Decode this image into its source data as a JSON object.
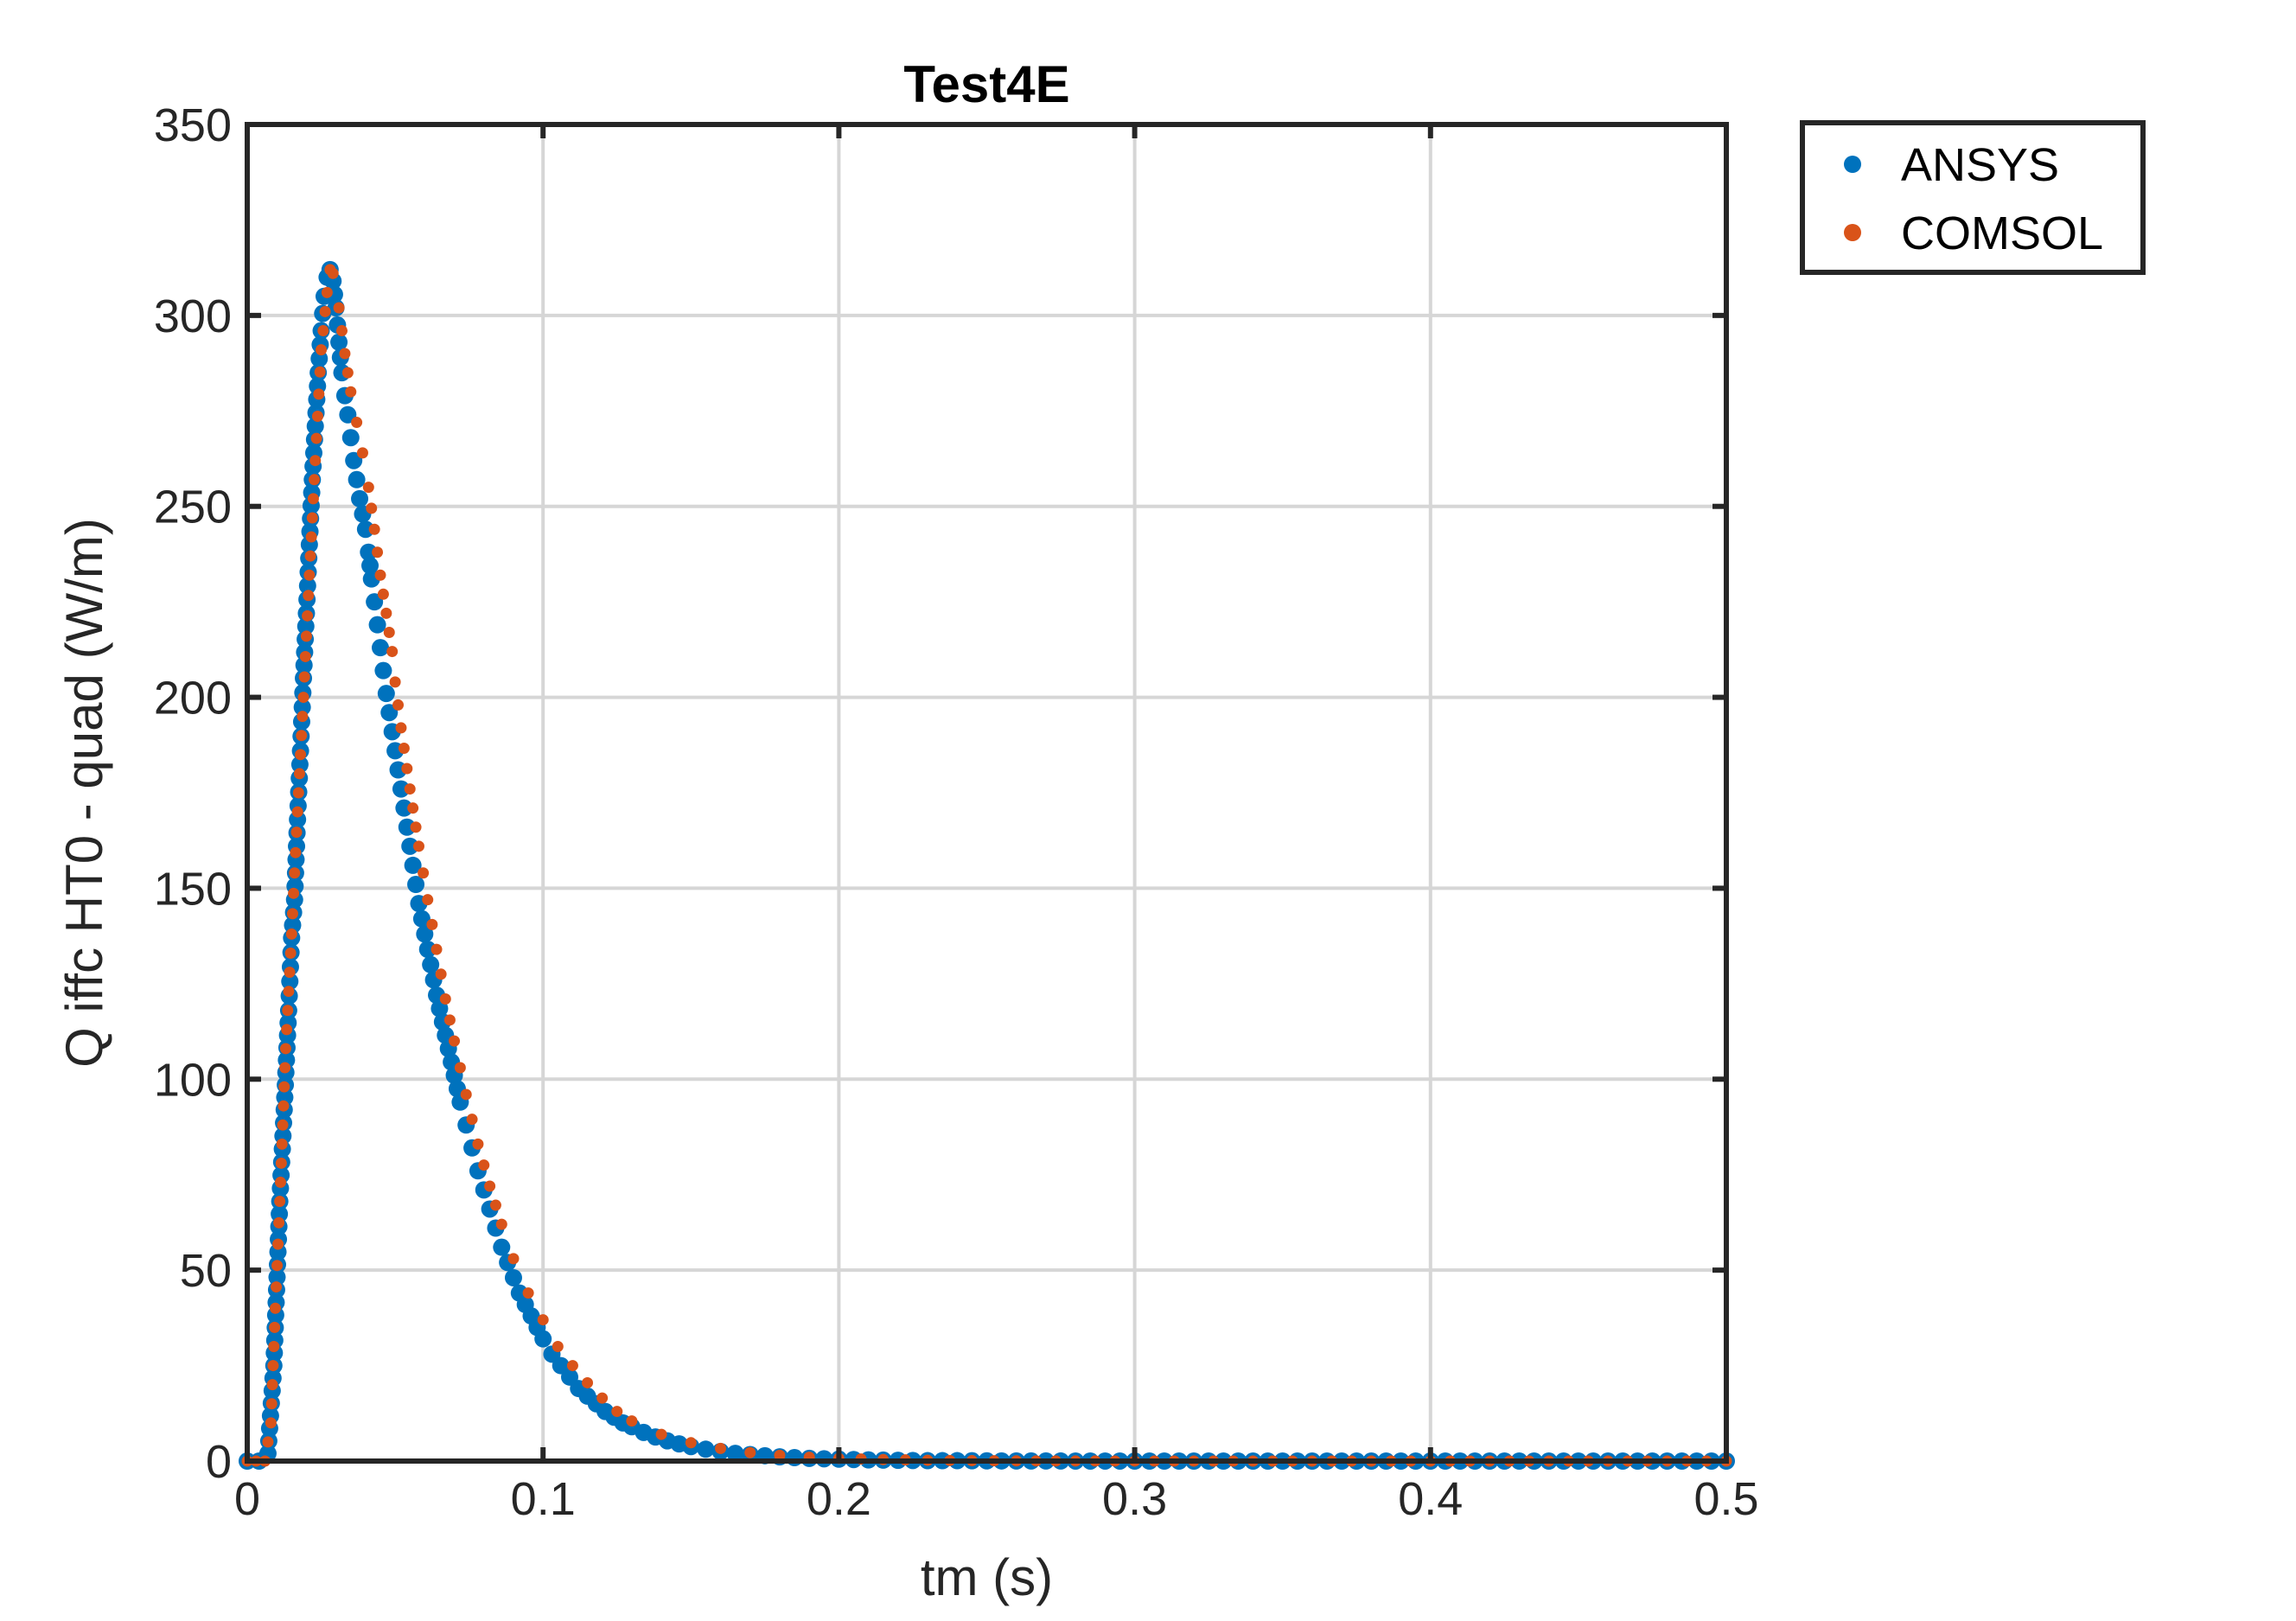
{
  "chart_data": {
    "type": "scatter",
    "title": "Test4E",
    "xlabel": "tm (s)",
    "ylabel": "Q iffc HT0 - quad  (W/m)",
    "xlim": [
      0,
      0.5
    ],
    "ylim": [
      0,
      350
    ],
    "xticks": [
      0,
      0.1,
      0.2,
      0.3,
      0.4,
      0.5
    ],
    "xtick_labels": [
      "0",
      "0.1",
      "0.2",
      "0.3",
      "0.4",
      "0.5"
    ],
    "yticks": [
      0,
      50,
      100,
      150,
      200,
      250,
      300,
      350
    ],
    "ytick_labels": [
      "0",
      "50",
      "100",
      "150",
      "200",
      "250",
      "300",
      "350"
    ],
    "grid": true,
    "legend_position": "outside-top-right",
    "series": [
      {
        "name": "ANSYS",
        "color": "#0072BD",
        "marker": "dot-large",
        "x": [
          0,
          0.004,
          0.007,
          0.009,
          0.011,
          0.0125,
          0.014,
          0.015,
          0.016,
          0.017,
          0.018,
          0.019,
          0.02,
          0.021,
          0.022,
          0.023,
          0.024,
          0.025,
          0.026,
          0.027,
          0.028,
          0.029,
          0.03,
          0.031,
          0.032,
          0.033,
          0.034,
          0.035,
          0.036,
          0.037,
          0.038,
          0.039,
          0.04,
          0.041,
          0.042,
          0.043,
          0.044,
          0.045,
          0.046,
          0.047,
          0.048,
          0.049,
          0.05,
          0.051,
          0.052,
          0.053,
          0.054,
          0.055,
          0.056,
          0.057,
          0.058,
          0.059,
          0.06,
          0.062,
          0.064,
          0.066,
          0.068,
          0.07,
          0.072,
          0.074,
          0.076,
          0.078,
          0.08,
          0.082,
          0.084,
          0.086,
          0.088,
          0.09,
          0.092,
          0.094,
          0.096,
          0.098,
          0.1,
          0.103,
          0.106,
          0.109,
          0.112,
          0.115,
          0.118,
          0.121,
          0.124,
          0.127,
          0.13,
          0.134,
          0.138,
          0.142,
          0.146,
          0.15,
          0.155,
          0.16,
          0.165,
          0.17,
          0.175,
          0.18,
          0.185,
          0.19,
          0.195,
          0.2,
          0.21,
          0.22,
          0.23,
          0.24,
          0.25,
          0.26,
          0.27,
          0.28,
          0.29,
          0.3,
          0.31,
          0.32,
          0.33,
          0.34,
          0.35,
          0.36,
          0.37,
          0.38,
          0.39,
          0.4,
          0.41,
          0.42,
          0.43,
          0.44,
          0.45,
          0.46,
          0.47,
          0.48,
          0.49,
          0.5
        ],
        "y": [
          0,
          0,
          2,
          25,
          68,
          92,
          118,
          137,
          147,
          168,
          186,
          205,
          222,
          240,
          257,
          271,
          285,
          296,
          305,
          310,
          312,
          309,
          302,
          293,
          285,
          279,
          274,
          268,
          262,
          257,
          252,
          248,
          244,
          238,
          231,
          225,
          219,
          213,
          207,
          201,
          196,
          191,
          186,
          181,
          176,
          171,
          166,
          161,
          156,
          151,
          146,
          142,
          138,
          130,
          122,
          115,
          108,
          101,
          94,
          88,
          82,
          76,
          71,
          66,
          61,
          56,
          52,
          48,
          44,
          41,
          38,
          35,
          32,
          28,
          25,
          22,
          19,
          17,
          15,
          13,
          11.5,
          10,
          9,
          7.5,
          6.3,
          5.3,
          4.5,
          3.8,
          3.1,
          2.5,
          2,
          1.7,
          1.4,
          1.1,
          0.9,
          0.7,
          0.6,
          0.5,
          0.3,
          0.2,
          0.1,
          0.1,
          0.05,
          0.03,
          0.02,
          0.01,
          0.01,
          0,
          0,
          0,
          0,
          0,
          0,
          0,
          0,
          0,
          0,
          0,
          0,
          0,
          0,
          0,
          0,
          0,
          0,
          0,
          0,
          0
        ]
      },
      {
        "name": "COMSOL",
        "color": "#D95319",
        "marker": "dot-small",
        "x": [
          0,
          0.003,
          0.006,
          0.008,
          0.0095,
          0.011,
          0.013,
          0.015,
          0.017,
          0.019,
          0.021,
          0.023,
          0.025,
          0.027,
          0.028,
          0.029,
          0.031,
          0.033,
          0.035,
          0.037,
          0.039,
          0.041,
          0.043,
          0.045,
          0.047,
          0.049,
          0.05,
          0.052,
          0.055,
          0.058,
          0.061,
          0.064,
          0.067,
          0.07,
          0.074,
          0.078,
          0.082,
          0.086,
          0.09,
          0.095,
          0.1,
          0.105,
          0.11,
          0.115,
          0.12,
          0.125,
          0.13,
          0.14,
          0.15,
          0.16,
          0.17,
          0.18,
          0.19,
          0.2,
          0.215,
          0.23,
          0.245,
          0.26,
          0.28,
          0.3,
          0.32,
          0.34,
          0.36,
          0.38,
          0.4,
          0.42,
          0.44,
          0.46,
          0.48,
          0.5
        ],
        "y": [
          0,
          0,
          0,
          10,
          40,
          68,
          108,
          138,
          170,
          200,
          232,
          262,
          291,
          306,
          312,
          311,
          302,
          290,
          280,
          272,
          264,
          255,
          244,
          232,
          222,
          212,
          204,
          192,
          176,
          161,
          147,
          134,
          121,
          110,
          96,
          83,
          72,
          62,
          53,
          44,
          37,
          30,
          25,
          20.5,
          16.5,
          13,
          10.5,
          7,
          4.8,
          3.3,
          2.2,
          1.5,
          1,
          0.7,
          0.4,
          0.2,
          0.1,
          0.05,
          0.02,
          0.01,
          0,
          0,
          0,
          0,
          0,
          0,
          0,
          0,
          0,
          0
        ]
      }
    ]
  }
}
